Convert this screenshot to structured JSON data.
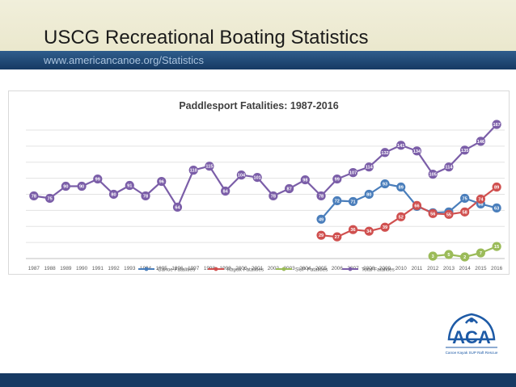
{
  "slide": {
    "title": "USCG Recreational Boating Statistics",
    "subtitle": "www.americancanoe.org/Statistics"
  },
  "logo": {
    "text": "ACA",
    "tagline": "Canoe Kayak SUP Raft Rescue"
  },
  "colors": {
    "canoe": "#4a7ebb",
    "kayak": "#d0504f",
    "sup": "#9bbb59",
    "total": "#7b5ea8",
    "accent_dark": "#173a63"
  },
  "chart_data": {
    "type": "line",
    "title": "Paddlesport Fatalities: 1987-2016",
    "xlabel": "",
    "ylabel": "",
    "ylim": [
      0,
      170
    ],
    "grid": true,
    "legend_position": "bottom",
    "categories": [
      "1987",
      "1988",
      "1989",
      "1990",
      "1991",
      "1992",
      "1993",
      "1994",
      "1995",
      "1996",
      "1997",
      "1998",
      "1999",
      "2000",
      "2001",
      "2002",
      "2003",
      "2004",
      "2005",
      "2006",
      "2007",
      "2008",
      "2009",
      "2010",
      "2011",
      "2012",
      "2013",
      "2014",
      "2015",
      "2016"
    ],
    "series": [
      {
        "name": "Canoe Fatalities",
        "color": "#4a7ebb",
        "values": [
          null,
          null,
          null,
          null,
          null,
          null,
          null,
          null,
          null,
          null,
          null,
          null,
          null,
          null,
          null,
          null,
          null,
          null,
          49,
          72,
          71,
          80,
          93,
          89,
          65,
          57,
          58,
          75,
          68,
          63
        ]
      },
      {
        "name": "Kayak Fatalities",
        "color": "#d0504f",
        "values": [
          null,
          null,
          null,
          null,
          null,
          null,
          null,
          null,
          null,
          null,
          null,
          null,
          null,
          null,
          null,
          null,
          null,
          null,
          29,
          27,
          36,
          34,
          39,
          52,
          66,
          56,
          55,
          58,
          74,
          89
        ]
      },
      {
        "name": "SUP Fatalities",
        "color": "#9bbb59",
        "values": [
          null,
          null,
          null,
          null,
          null,
          null,
          null,
          null,
          null,
          null,
          null,
          null,
          null,
          null,
          null,
          null,
          null,
          null,
          null,
          null,
          null,
          null,
          null,
          null,
          null,
          3,
          5,
          2,
          7,
          15
        ]
      },
      {
        "name": "Total Fatalities",
        "color": "#7b5ea8",
        "values": [
          78,
          75,
          90,
          90,
          99,
          80,
          91,
          78,
          96,
          64,
          110,
          115,
          84,
          104,
          101,
          78,
          87,
          98,
          78,
          99,
          107,
          114,
          132,
          141,
          134,
          105,
          114,
          135,
          146,
          167
        ]
      }
    ]
  }
}
